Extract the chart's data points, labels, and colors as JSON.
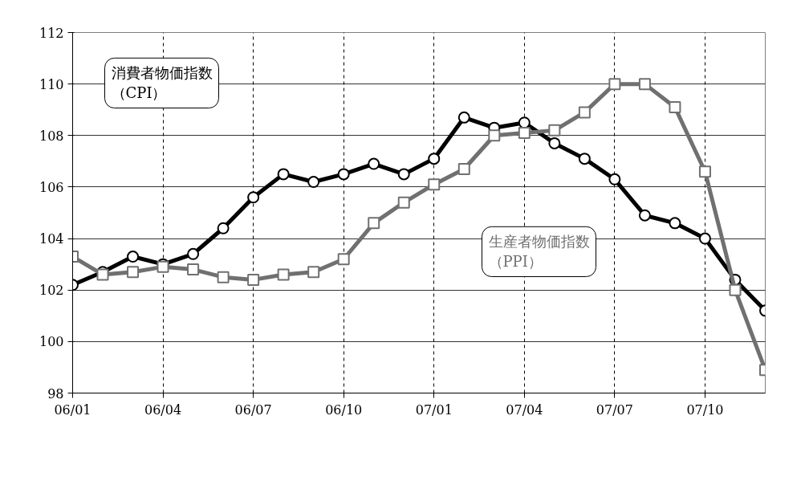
{
  "chart_data": {
    "type": "line",
    "categories": [
      "06/01",
      null,
      null,
      "06/04",
      null,
      null,
      "06/07",
      null,
      null,
      "06/10",
      null,
      null,
      "07/01",
      null,
      null,
      "07/04",
      null,
      null,
      "07/07",
      null,
      null,
      "07/10",
      null,
      null
    ],
    "series": [
      {
        "name": "消費者物価指数（CPI）",
        "color": "#000000",
        "marker": "circle",
        "values": [
          102.2,
          102.7,
          103.3,
          103.0,
          103.4,
          104.4,
          105.6,
          106.5,
          106.2,
          106.5,
          106.9,
          106.5,
          107.1,
          108.7,
          108.3,
          108.5,
          107.7,
          107.1,
          106.3,
          104.9,
          104.6,
          104.0,
          102.4,
          101.2
        ]
      },
      {
        "name": "生産者物価指数（PPI）",
        "color": "#707070",
        "marker": "square",
        "values": [
          103.3,
          102.6,
          102.7,
          102.9,
          102.8,
          102.5,
          102.4,
          102.6,
          102.7,
          103.2,
          104.6,
          105.4,
          106.1,
          106.7,
          108.0,
          108.1,
          108.2,
          108.9,
          110.0,
          110.0,
          109.1,
          106.6,
          102.0,
          98.9
        ]
      }
    ],
    "ylim": [
      98,
      112
    ],
    "yticks": [
      98,
      100,
      102,
      104,
      106,
      108,
      110,
      112
    ],
    "grid": true,
    "line_style": "solid"
  }
}
